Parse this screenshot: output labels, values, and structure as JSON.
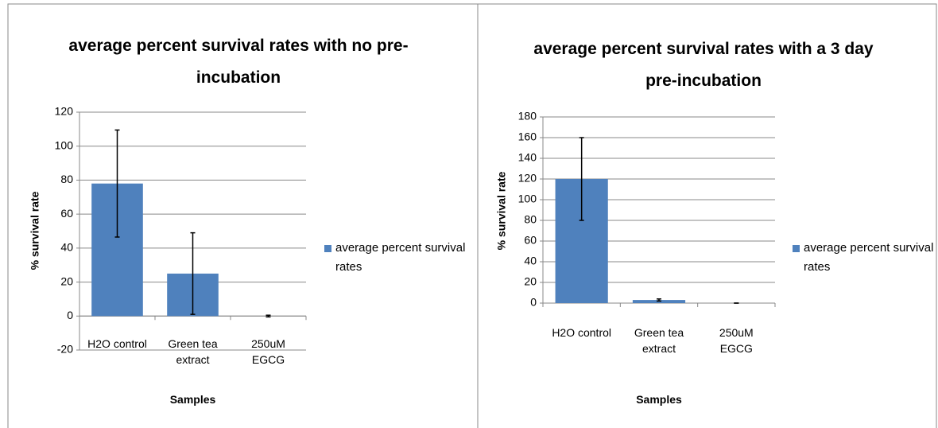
{
  "chart_data": [
    {
      "type": "bar",
      "title": "average percent survival rates with no pre-incubation",
      "x_label": "Samples",
      "y_label": "% survival rate",
      "categories": [
        "H2O control",
        "Green tea extract",
        "250uM EGCG"
      ],
      "series": [
        {
          "name": "average percent survival rates",
          "color": "#4f81bd",
          "values": [
            78,
            25,
            0
          ],
          "errors": [
            31.5,
            24,
            0.5
          ]
        }
      ],
      "ylim": [
        -20,
        120
      ],
      "yticks": [
        -20,
        0,
        20,
        40,
        60,
        80,
        100,
        120
      ],
      "grid": true,
      "legend": "right"
    },
    {
      "type": "bar",
      "title": "average percent survival rates with a 3 day pre-incubation",
      "x_label": "Samples",
      "y_label": "% survival rate",
      "categories": [
        "H2O control",
        "Green tea extract",
        "250uM EGCG"
      ],
      "series": [
        {
          "name": "average percent survival rates",
          "color": "#4f81bd",
          "values": [
            120,
            3,
            0
          ],
          "errors": [
            40,
            1,
            0
          ]
        }
      ],
      "ylim": [
        0,
        180
      ],
      "yticks": [
        0,
        20,
        40,
        60,
        80,
        100,
        120,
        140,
        160,
        180
      ],
      "grid": true,
      "legend": "right"
    }
  ]
}
